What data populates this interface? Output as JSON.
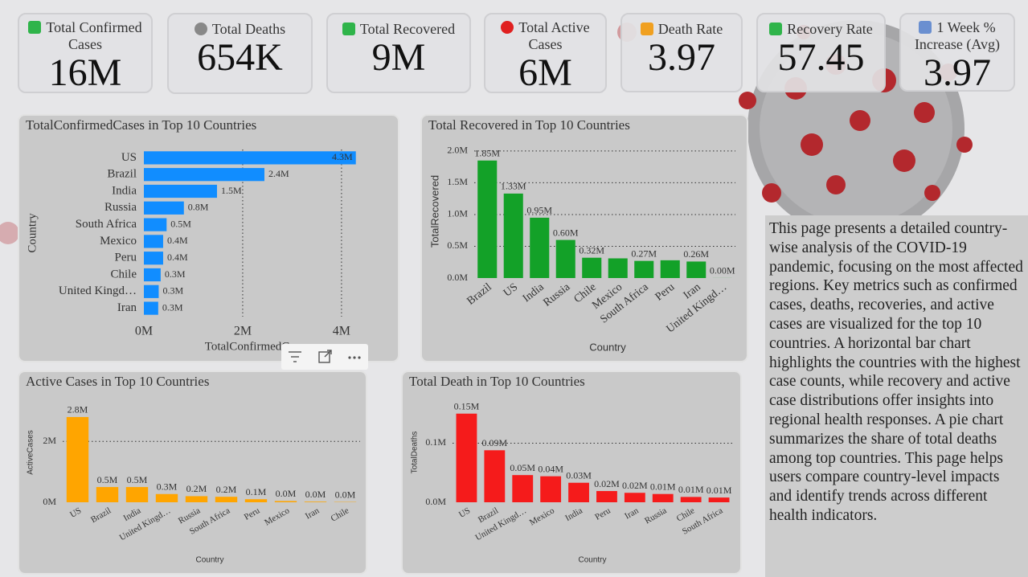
{
  "kpis": [
    {
      "label": "Total Confirmed Cases",
      "value": "16M"
    },
    {
      "label": "Total Deaths",
      "value": "654K"
    },
    {
      "label": "Total Recovered",
      "value": "9M"
    },
    {
      "label": "Total Active Cases",
      "value": "6M"
    },
    {
      "label": "Death Rate",
      "value": "3.97"
    },
    {
      "label": "Recovery Rate",
      "value": "57.45"
    },
    {
      "label": "1 Week % Increase (Avg)",
      "value": "3.97"
    }
  ],
  "chart_data": [
    {
      "type": "hbar",
      "title": "TotalConfirmedCases in Top 10 Countries",
      "x_label": "TotalConfirmedCases",
      "y_label": "Country",
      "categories": [
        "US",
        "Brazil",
        "India",
        "Russia",
        "South Africa",
        "Mexico",
        "Peru",
        "Chile",
        "United Kingd…",
        "Iran"
      ],
      "values": [
        4290000,
        2440000,
        1480000,
        810000,
        460000,
        390000,
        390000,
        340000,
        300000,
        290000
      ],
      "value_labels": [
        "4.3M",
        "2.4M",
        "1.5M",
        "0.8M",
        "0.5M",
        "0.4M",
        "0.4M",
        "0.3M",
        "0.3M",
        "0.3M"
      ],
      "color": "#118dff",
      "xlim": [
        0,
        4620000
      ],
      "xticks": [
        {
          "value": 0,
          "label": "0M"
        },
        {
          "value": 2000000,
          "label": "2M"
        },
        {
          "value": 4000000,
          "label": "4M"
        }
      ],
      "grid": true
    },
    {
      "type": "bar",
      "title": "Total Recovered in Top 10 Countries",
      "x_label": "Country",
      "y_label": "TotalRecovered",
      "categories": [
        "Brazil",
        "US",
        "India",
        "Russia",
        "Chile",
        "Mexico",
        "South Africa",
        "Peru",
        "Iran",
        "United Kingd…"
      ],
      "values": [
        1850000,
        1330000,
        950000,
        600000,
        320000,
        310000,
        270000,
        280000,
        260000,
        1000
      ],
      "value_labels": [
        "1.85M",
        "1.33M",
        "0.95M",
        "0.60M",
        "0.32M",
        null,
        "0.27M",
        null,
        "0.26M",
        "0.00M"
      ],
      "color": "#13a128",
      "ylim": [
        0,
        2100000
      ],
      "yticks": [
        {
          "value": 0,
          "label": "0.0M"
        },
        {
          "value": 500000,
          "label": "0.5M"
        },
        {
          "value": 1000000,
          "label": "1.0M"
        },
        {
          "value": 1500000,
          "label": "1.5M"
        },
        {
          "value": 2000000,
          "label": "2.0M"
        }
      ],
      "grid": true
    },
    {
      "type": "bar",
      "title": "Active Cases in Top 10 Countries",
      "x_label": "Country",
      "y_label": "ActiveCases",
      "categories": [
        "US",
        "Brazil",
        "India",
        "United Kingd…",
        "Russia",
        "South Africa",
        "Peru",
        "Mexico",
        "Iran",
        "Chile"
      ],
      "values": [
        2800000,
        500000,
        500000,
        270000,
        200000,
        180000,
        100000,
        40000,
        20000,
        10000
      ],
      "value_labels": [
        "2.8M",
        "0.5M",
        "0.5M",
        "0.3M",
        "0.2M",
        "0.2M",
        "0.1M",
        "0.0M",
        "0.0M",
        "0.0M"
      ],
      "color": "#ffa500",
      "ylim": [
        0,
        3300000
      ],
      "yticks": [
        {
          "value": 0,
          "label": "0M"
        },
        {
          "value": 2000000,
          "label": "2M"
        }
      ],
      "grid": true
    },
    {
      "type": "bar",
      "title": "Total Death in Top 10 Countries",
      "x_label": "Country",
      "y_label": "TotalDeaths",
      "categories": [
        "US",
        "Brazil",
        "United Kingd…",
        "Mexico",
        "India",
        "Peru",
        "Iran",
        "Russia",
        "Chile",
        "South Africa"
      ],
      "values": [
        150000,
        88000,
        46000,
        44000,
        33000,
        19000,
        16000,
        14000,
        9000,
        8000
      ],
      "value_labels": [
        "0.15M",
        "0.09M",
        "0.05M",
        "0.04M",
        "0.03M",
        "0.02M",
        "0.02M",
        "0.01M",
        "0.01M",
        "0.01M"
      ],
      "color": "#f51b1b",
      "ylim": [
        0,
        170000
      ],
      "yticks": [
        {
          "value": 0,
          "label": "0.0M"
        },
        {
          "value": 100000,
          "label": "0.1M"
        }
      ],
      "grid": true
    }
  ],
  "description": "This page presents a detailed country-wise analysis of the COVID-19 pandemic, focusing on the most affected regions. Key metrics such as confirmed cases, deaths, recoveries, and active cases are visualized for the top 10 countries. A horizontal bar chart highlights the countries with the highest case counts, while recovery and active case distributions offer insights into regional health responses. A pie chart summarizes the share of total deaths among top countries. This page helps users compare country-level impacts and identify trends across different health indicators."
}
